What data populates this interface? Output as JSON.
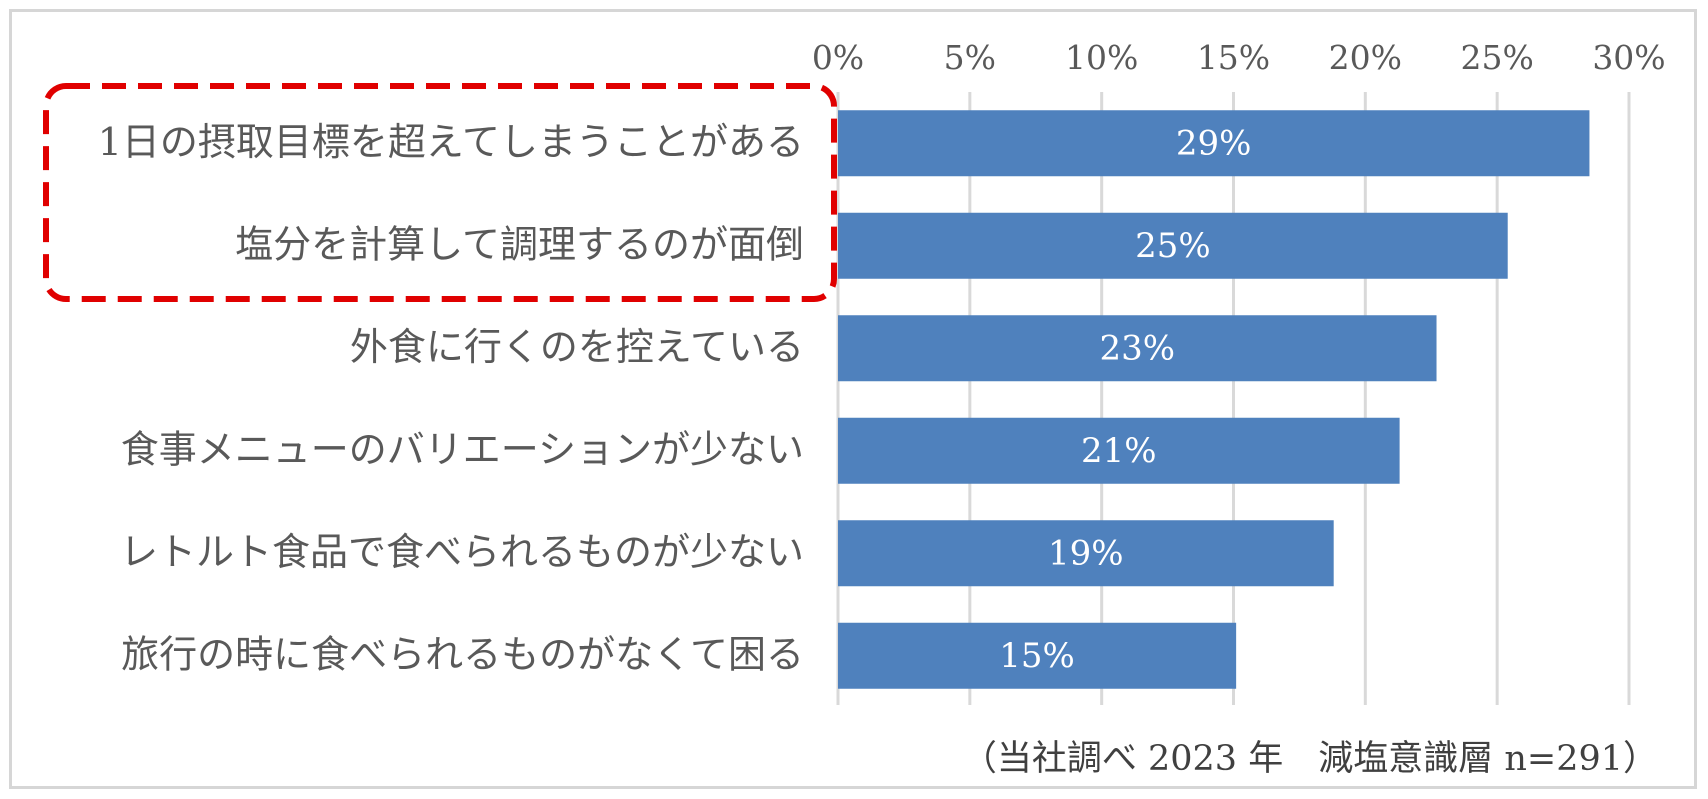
{
  "chart_data": {
    "type": "bar",
    "orientation": "horizontal",
    "categories": [
      "1日の摂取目標を超えてしまうことがある",
      "塩分を計算して調理するのが面倒",
      "外食に行くのを控えている",
      "食事メニューのバリエーションが少ない",
      "レトルト食品で食べられるものが少ない",
      "旅行の時に食べられるものがなくて困る"
    ],
    "values": [
      28.5,
      25.4,
      22.7,
      21.3,
      18.8,
      15.1
    ],
    "data_labels": [
      "29%",
      "25%",
      "23%",
      "21%",
      "19%",
      "15%"
    ],
    "tick_labels": [
      "0%",
      "5%",
      "10%",
      "15%",
      "20%",
      "25%",
      "30%"
    ],
    "xlim": [
      0,
      30
    ],
    "x_axis_position": "top",
    "grid": true,
    "bar_color": "#4f81bd",
    "grid_color": "#d9d9d9",
    "highlight_color": "#e00000",
    "highlighted_categories": [
      0,
      1
    ],
    "note": "（当社調べ 2023 年　減塩意識層 n=291）"
  }
}
